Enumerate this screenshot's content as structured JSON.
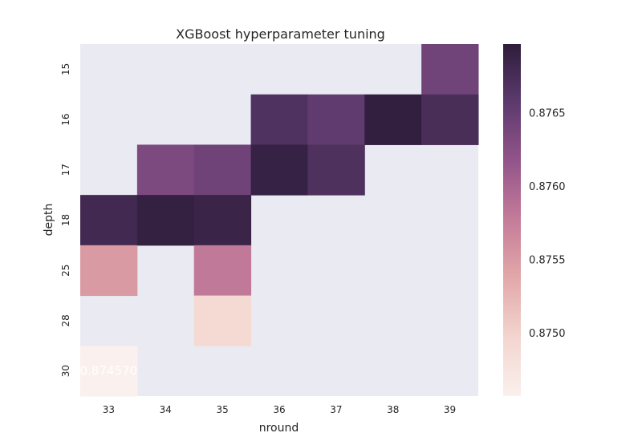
{
  "chart_data": {
    "type": "heatmap",
    "title": "XGBoost hyperparameter tuning",
    "xlabel": "nround",
    "ylabel": "depth",
    "x_categories": [
      "33",
      "34",
      "35",
      "36",
      "37",
      "38",
      "39"
    ],
    "y_categories": [
      "15",
      "16",
      "17",
      "18",
      "25",
      "28",
      "30"
    ],
    "values": [
      [
        null,
        null,
        null,
        null,
        null,
        null,
        0.87642
      ],
      [
        null,
        null,
        null,
        0.87668,
        0.87655,
        0.87694,
        0.87674
      ],
      [
        null,
        0.87633,
        0.87643,
        0.8769,
        0.8767,
        null,
        null
      ],
      [
        0.8768,
        0.87692,
        0.87687,
        null,
        null,
        null,
        null
      ],
      [
        0.8755,
        null,
        0.8758,
        null,
        null,
        null,
        null
      ],
      [
        null,
        null,
        0.8749,
        null,
        null,
        null,
        null
      ],
      [
        0.87457,
        null,
        null,
        null,
        null,
        null,
        null
      ]
    ],
    "annotations": [
      {
        "row": 6,
        "col": 0,
        "text": "0.874570"
      }
    ],
    "colorbar": {
      "min": 0.87457,
      "max": 0.87697,
      "ticks": [
        "0.8750",
        "0.8755",
        "0.8760",
        "0.8765"
      ],
      "tick_values": [
        0.875,
        0.8755,
        0.876,
        0.8765
      ]
    },
    "colors": {
      "missing": "#eaeaf2",
      "annotation_text": "#ffffff",
      "scale": [
        "#faf0ed",
        "#f3d5ce",
        "#e2a9a9",
        "#c57c9a",
        "#93558a",
        "#5d3a6e",
        "#2e1d3b"
      ]
    }
  }
}
